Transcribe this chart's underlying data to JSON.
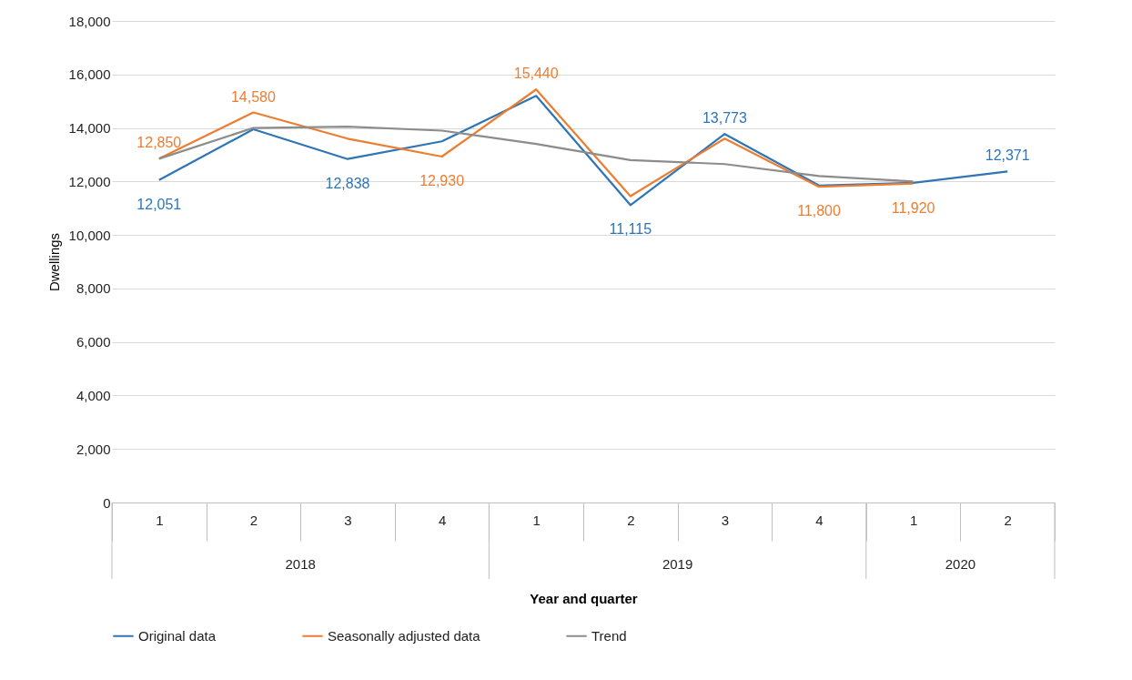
{
  "chart_data": {
    "type": "line",
    "xlabel": "Year and quarter",
    "ylabel": "Dwellings",
    "categories": [
      "1",
      "2",
      "3",
      "4",
      "1",
      "2",
      "3",
      "4",
      "1",
      "2"
    ],
    "annotations": [
      "2018",
      "2019",
      "2020"
    ],
    "series": [
      {
        "name": "Original data",
        "color": "#2e75b6",
        "values": [
          12051,
          13950,
          12838,
          13500,
          15200,
          11115,
          13773,
          11850,
          11950,
          12371
        ],
        "value_labels": [
          "12,051",
          null,
          "12,838",
          null,
          null,
          "11,115",
          "13,773",
          null,
          null,
          "12,371"
        ]
      },
      {
        "name": "Seasonally adjusted data",
        "color": "#ed7d31",
        "values": [
          12850,
          14580,
          13600,
          12930,
          15440,
          11450,
          13600,
          11800,
          11920,
          null
        ],
        "value_labels": [
          "12,850",
          "14,580",
          null,
          "12,930",
          "15,440",
          null,
          null,
          "11,800",
          "11,920",
          null
        ]
      },
      {
        "name": "Trend",
        "color": "#8c8c8c",
        "values": [
          12850,
          14000,
          14050,
          13900,
          13400,
          12800,
          12650,
          12200,
          12000,
          null
        ]
      }
    ],
    "ylim": [
      0,
      18000
    ],
    "yticks": [
      0,
      {
        "value": 2000,
        "label": "2,000"
      },
      {
        "value": 4000,
        "label": "4,000"
      },
      {
        "value": 6000,
        "label": "6,000"
      },
      {
        "value": 8000,
        "label": "8,000"
      },
      {
        "value": 10000,
        "label": "10,000"
      },
      {
        "value": 12000,
        "label": "12,000"
      },
      {
        "value": 14000,
        "label": "14,000"
      },
      {
        "value": 16000,
        "label": "16,000"
      },
      {
        "value": 18000,
        "label": "18,000"
      }
    ],
    "grid": "y",
    "legend": "bottom",
    "marker": "none",
    "line_style": "solid"
  }
}
